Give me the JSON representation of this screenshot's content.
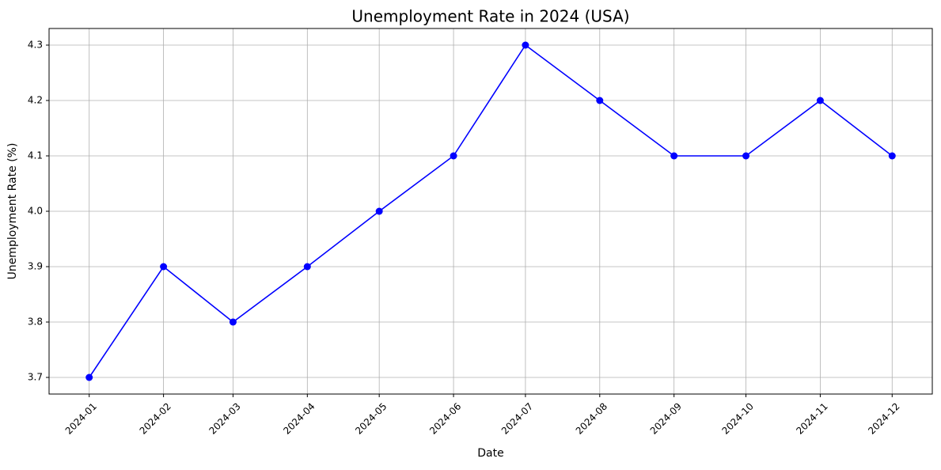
{
  "chart_data": {
    "type": "line",
    "title": "Unemployment Rate in 2024 (USA)",
    "x_label": "Date",
    "y_label": "Unemployment Rate (%)",
    "x": [
      "2024-01",
      "2024-02",
      "2024-03",
      "2024-04",
      "2024-05",
      "2024-06",
      "2024-07",
      "2024-08",
      "2024-09",
      "2024-10",
      "2024-11",
      "2024-12"
    ],
    "values": [
      3.7,
      3.9,
      3.8,
      3.9,
      4.0,
      4.1,
      4.3,
      4.2,
      4.1,
      4.1,
      4.2,
      4.1
    ],
    "color": "#0000ff",
    "ylim": [
      3.67,
      4.33
    ],
    "yticks": [
      3.7,
      3.8,
      3.9,
      {
        "value": 4,
        "label": "4.0"
      },
      4.1,
      4.2,
      4.3
    ],
    "grid": true
  }
}
